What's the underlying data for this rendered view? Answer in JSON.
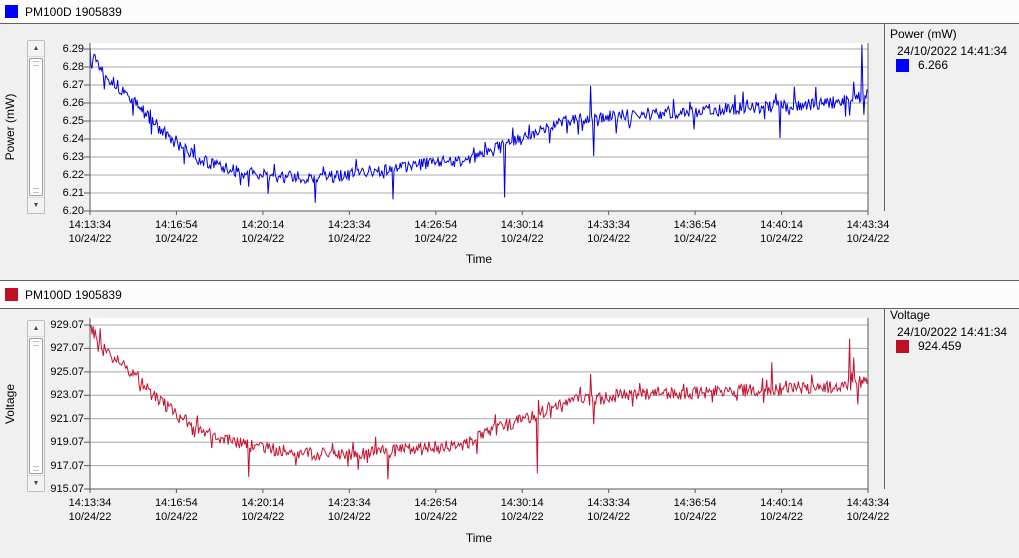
{
  "app": {
    "background": "#f0f0f0"
  },
  "icons": {
    "scroll_up": "▲",
    "scroll_down": "▼"
  },
  "charts": [
    {
      "legend": {
        "label": "PM100D 1905839",
        "color": "#0000ff"
      },
      "y_axis_title": "Power (mW)",
      "x_axis_title": "Time",
      "info": {
        "title": "Power (mW)",
        "timestamp": "24/10/2022 14:41:34",
        "value": "6.266"
      }
    },
    {
      "legend": {
        "label": "PM100D 1905839",
        "color": "#c00e25"
      },
      "y_axis_title": "Voltage",
      "x_axis_title": "Time",
      "info": {
        "title": "Voltage",
        "timestamp": "24/10/2022 14:41:34",
        "value": "924.459"
      }
    }
  ],
  "chart_data": [
    {
      "type": "line",
      "name": "power",
      "series_name": "PM100D 1905839",
      "title": "",
      "xlabel": "Time",
      "ylabel": "Power (mW)",
      "line_color": "#0000e0",
      "legend_position": "top-left",
      "grid": true,
      "x_range_s": [
        0,
        1800
      ],
      "x_ticks": [
        {
          "time": "14:13:34",
          "date": "10/24/22"
        },
        {
          "time": "14:16:54",
          "date": "10/24/22"
        },
        {
          "time": "14:20:14",
          "date": "10/24/22"
        },
        {
          "time": "14:23:34",
          "date": "10/24/22"
        },
        {
          "time": "14:26:54",
          "date": "10/24/22"
        },
        {
          "time": "14:30:14",
          "date": "10/24/22"
        },
        {
          "time": "14:33:34",
          "date": "10/24/22"
        },
        {
          "time": "14:36:54",
          "date": "10/24/22"
        },
        {
          "time": "14:40:14",
          "date": "10/24/22"
        },
        {
          "time": "14:43:34",
          "date": "10/24/22"
        }
      ],
      "y_ticks": [
        "6.29",
        "6.28",
        "6.27",
        "6.26",
        "6.25",
        "6.24",
        "6.23",
        "6.22",
        "6.21",
        "6.20"
      ],
      "y_tick_top_value": 6.29,
      "y_tick_step": -0.01,
      "ylim": [
        6.2,
        6.2933
      ],
      "trend": [
        [
          0,
          6.291
        ],
        [
          25,
          6.2795
        ],
        [
          50,
          6.2725
        ],
        [
          81,
          6.2655
        ],
        [
          115,
          6.2575
        ],
        [
          150,
          6.2485
        ],
        [
          197,
          6.2375
        ],
        [
          240,
          6.2305
        ],
        [
          280,
          6.226
        ],
        [
          330,
          6.2225
        ],
        [
          390,
          6.22
        ],
        [
          450,
          6.219
        ],
        [
          520,
          6.2185
        ],
        [
          580,
          6.2195
        ],
        [
          640,
          6.2215
        ],
        [
          700,
          6.2235
        ],
        [
          760,
          6.2255
        ],
        [
          820,
          6.2275
        ],
        [
          870,
          6.2285
        ],
        [
          920,
          6.2325
        ],
        [
          970,
          6.2375
        ],
        [
          1020,
          6.2425
        ],
        [
          1060,
          6.2465
        ],
        [
          1090,
          6.249
        ],
        [
          1140,
          6.2515
        ],
        [
          1200,
          6.2525
        ],
        [
          1260,
          6.2535
        ],
        [
          1330,
          6.2545
        ],
        [
          1400,
          6.2555
        ],
        [
          1470,
          6.2565
        ],
        [
          1540,
          6.2575
        ],
        [
          1610,
          6.2585
        ],
        [
          1680,
          6.2595
        ],
        [
          1730,
          6.2605
        ],
        [
          1765,
          6.262
        ],
        [
          1785,
          6.264
        ],
        [
          1800,
          6.266
        ]
      ],
      "spikes": [
        [
          130,
          6.2525
        ],
        [
          366,
          6.2135
        ],
        [
          520,
          6.2045
        ],
        [
          700,
          6.2065
        ],
        [
          960,
          6.2075
        ],
        [
          1158,
          6.2695
        ],
        [
          1166,
          6.2305
        ],
        [
          1597,
          6.2405
        ],
        [
          1785,
          6.2925
        ],
        [
          1791,
          6.2535
        ]
      ],
      "noise_amp": 0.0035,
      "noise_big_amp": 0.0105,
      "noise_big_prob": 0.08,
      "noise_seed": 13,
      "samples": 760,
      "latest_value": 6.266,
      "latest_timestamp": "24/10/2022 14:41:34"
    },
    {
      "type": "line",
      "name": "voltage",
      "series_name": "PM100D 1905839",
      "title": "",
      "xlabel": "Time",
      "ylabel": "Voltage",
      "line_color": "#c41230",
      "legend_position": "top-left",
      "grid": true,
      "x_range_s": [
        0,
        1800
      ],
      "x_ticks": [
        {
          "time": "14:13:34",
          "date": "10/24/22"
        },
        {
          "time": "14:16:54",
          "date": "10/24/22"
        },
        {
          "time": "14:20:14",
          "date": "10/24/22"
        },
        {
          "time": "14:23:34",
          "date": "10/24/22"
        },
        {
          "time": "14:26:54",
          "date": "10/24/22"
        },
        {
          "time": "14:30:14",
          "date": "10/24/22"
        },
        {
          "time": "14:33:34",
          "date": "10/24/22"
        },
        {
          "time": "14:36:54",
          "date": "10/24/22"
        },
        {
          "time": "14:40:14",
          "date": "10/24/22"
        },
        {
          "time": "14:43:34",
          "date": "10/24/22"
        }
      ],
      "y_ticks": [
        "929.07",
        "927.07",
        "925.07",
        "923.07",
        "921.07",
        "919.07",
        "917.07",
        "915.07"
      ],
      "y_tick_top_value": 929.07,
      "y_tick_step": -2.0,
      "ylim": [
        915.07,
        929.67
      ],
      "trend": [
        [
          0,
          929.0
        ],
        [
          25,
          927.4
        ],
        [
          50,
          926.5
        ],
        [
          81,
          925.6
        ],
        [
          115,
          924.4
        ],
        [
          150,
          923.1
        ],
        [
          197,
          921.5
        ],
        [
          240,
          920.4
        ],
        [
          280,
          919.7
        ],
        [
          330,
          919.1
        ],
        [
          390,
          918.6
        ],
        [
          450,
          918.3
        ],
        [
          510,
          918.1
        ],
        [
          580,
          918.0
        ],
        [
          640,
          918.1
        ],
        [
          700,
          918.3
        ],
        [
          760,
          918.5
        ],
        [
          820,
          918.7
        ],
        [
          870,
          918.9
        ],
        [
          920,
          919.9
        ],
        [
          970,
          920.6
        ],
        [
          1020,
          921.3
        ],
        [
          1060,
          921.9
        ],
        [
          1090,
          922.3
        ],
        [
          1140,
          922.7
        ],
        [
          1200,
          922.9
        ],
        [
          1260,
          923.1
        ],
        [
          1330,
          923.2
        ],
        [
          1400,
          923.3
        ],
        [
          1470,
          923.45
        ],
        [
          1540,
          923.55
        ],
        [
          1610,
          923.65
        ],
        [
          1680,
          923.75
        ],
        [
          1730,
          923.85
        ],
        [
          1765,
          924.0
        ],
        [
          1785,
          924.2
        ],
        [
          1800,
          924.459
        ]
      ],
      "spikes": [
        [
          157,
          922.9
        ],
        [
          366,
          916.1
        ],
        [
          690,
          915.9
        ],
        [
          1035,
          916.4
        ],
        [
          1158,
          924.9
        ],
        [
          1166,
          920.6
        ],
        [
          1578,
          925.9
        ],
        [
          1758,
          927.9
        ],
        [
          1768,
          926.3
        ],
        [
          1777,
          922.3
        ]
      ],
      "noise_amp": 0.55,
      "noise_big_amp": 1.35,
      "noise_big_prob": 0.08,
      "noise_seed": 77,
      "samples": 760,
      "latest_value": 924.459,
      "latest_timestamp": "24/10/2022 14:41:34"
    }
  ]
}
